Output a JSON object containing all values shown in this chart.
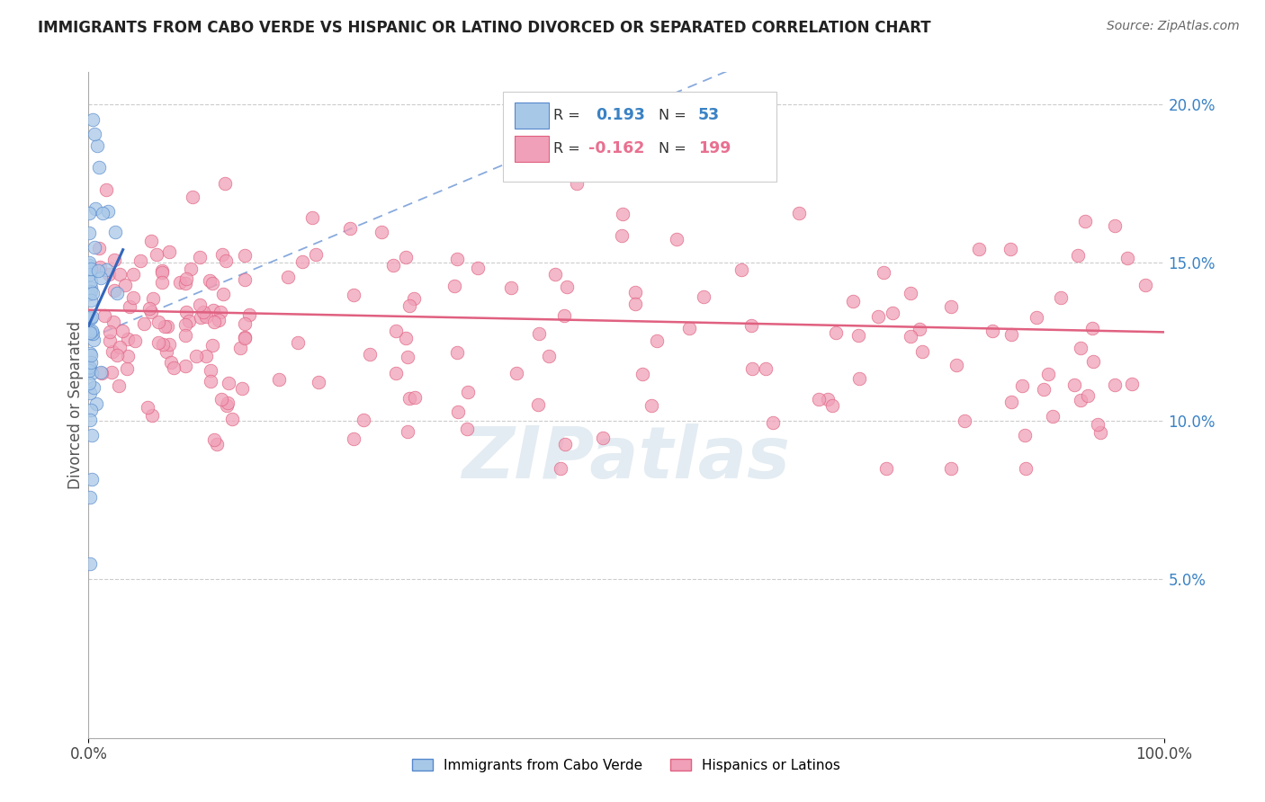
{
  "title": "IMMIGRANTS FROM CABO VERDE VS HISPANIC OR LATINO DIVORCED OR SEPARATED CORRELATION CHART",
  "source": "Source: ZipAtlas.com",
  "ylabel": "Divorced or Separated",
  "xlim": [
    0.0,
    1.0
  ],
  "ylim": [
    0.0,
    0.21
  ],
  "yticks": [
    0.0,
    0.05,
    0.1,
    0.15,
    0.2
  ],
  "ytick_labels": [
    "",
    "5.0%",
    "10.0%",
    "15.0%",
    "20.0%"
  ],
  "xtick_labels": [
    "0.0%",
    "100.0%"
  ],
  "blue_color": "#a8c8e8",
  "pink_color": "#f0a0b8",
  "blue_edge_color": "#5588cc",
  "pink_edge_color": "#e06080",
  "blue_line_color": "#3366bb",
  "pink_line_color": "#e06080",
  "dashed_line_color": "#88aadd",
  "text_blue": "#3a82c4",
  "text_pink": "#e87090",
  "watermark": "ZIPatlas",
  "watermark_color": "#ccdde8"
}
